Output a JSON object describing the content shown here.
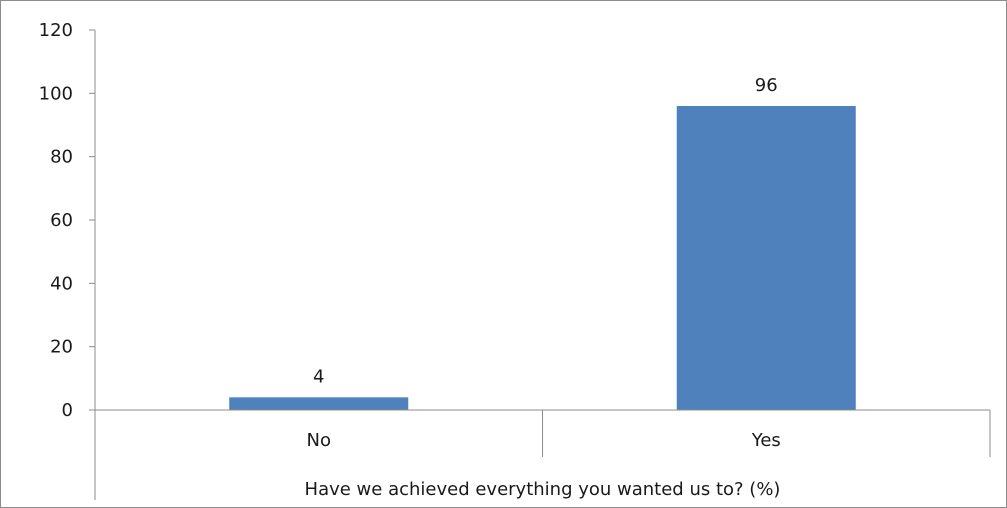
{
  "chart_data": {
    "type": "bar",
    "categories": [
      "No",
      "Yes"
    ],
    "values": [
      4,
      96
    ],
    "data_labels": [
      "4",
      "96"
    ],
    "title": "",
    "xlabel": "Have we achieved everything you wanted us to? (%)",
    "ylabel": "",
    "ylim": [
      0,
      120
    ],
    "yticks": [
      0,
      20,
      40,
      60,
      80,
      100,
      120
    ],
    "ytick_labels": [
      "0",
      "20",
      "40",
      "60",
      "80",
      "100",
      "120"
    ],
    "grid": false,
    "legend": "none",
    "bar_color": "#4f81bd",
    "border_color": "#8c8c8c",
    "axis_color": "#8c8c8c"
  }
}
